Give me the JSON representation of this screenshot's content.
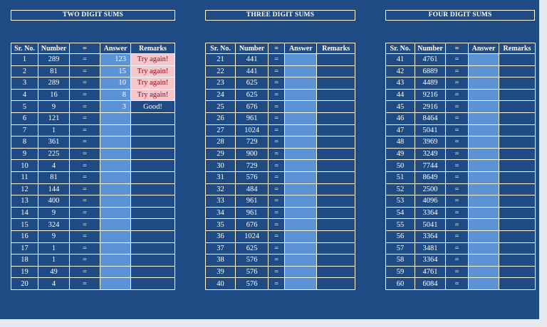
{
  "sections": [
    {
      "title": "TWO DIGIT SUMS",
      "columns": [
        "Sr. No.",
        "Number",
        "=",
        "Answer",
        "Remarks"
      ],
      "rows": [
        {
          "sr": "1",
          "number": "289",
          "eq": "=",
          "answer": "123",
          "remark": "Try again!"
        },
        {
          "sr": "2",
          "number": "81",
          "eq": "=",
          "answer": "15",
          "remark": "Try again!"
        },
        {
          "sr": "3",
          "number": "289",
          "eq": "=",
          "answer": "10",
          "remark": "Try again!"
        },
        {
          "sr": "4",
          "number": "16",
          "eq": "=",
          "answer": "8",
          "remark": "Try again!"
        },
        {
          "sr": "5",
          "number": "9",
          "eq": "=",
          "answer": "3",
          "remark": "Good!"
        },
        {
          "sr": "6",
          "number": "121",
          "eq": "=",
          "answer": "",
          "remark": ""
        },
        {
          "sr": "7",
          "number": "1",
          "eq": "=",
          "answer": "",
          "remark": ""
        },
        {
          "sr": "8",
          "number": "361",
          "eq": "=",
          "answer": "",
          "remark": ""
        },
        {
          "sr": "9",
          "number": "225",
          "eq": "=",
          "answer": "",
          "remark": ""
        },
        {
          "sr": "10",
          "number": "4",
          "eq": "=",
          "answer": "",
          "remark": ""
        },
        {
          "sr": "11",
          "number": "81",
          "eq": "=",
          "answer": "",
          "remark": ""
        },
        {
          "sr": "12",
          "number": "144",
          "eq": "=",
          "answer": "",
          "remark": ""
        },
        {
          "sr": "13",
          "number": "400",
          "eq": "=",
          "answer": "",
          "remark": ""
        },
        {
          "sr": "14",
          "number": "9",
          "eq": "=",
          "answer": "",
          "remark": ""
        },
        {
          "sr": "15",
          "number": "324",
          "eq": "=",
          "answer": "",
          "remark": ""
        },
        {
          "sr": "16",
          "number": "9",
          "eq": "=",
          "answer": "",
          "remark": ""
        },
        {
          "sr": "17",
          "number": "1",
          "eq": "=",
          "answer": "",
          "remark": ""
        },
        {
          "sr": "18",
          "number": "1",
          "eq": "=",
          "answer": "",
          "remark": ""
        },
        {
          "sr": "19",
          "number": "49",
          "eq": "=",
          "answer": "",
          "remark": ""
        },
        {
          "sr": "20",
          "number": "4",
          "eq": "=",
          "answer": "",
          "remark": ""
        }
      ]
    },
    {
      "title": "THREE DIGIT SUMS",
      "columns": [
        "Sr. No.",
        "Number",
        "=",
        "Answer",
        "Remarks"
      ],
      "rows": [
        {
          "sr": "21",
          "number": "441",
          "eq": "=",
          "answer": "",
          "remark": ""
        },
        {
          "sr": "22",
          "number": "441",
          "eq": "=",
          "answer": "",
          "remark": ""
        },
        {
          "sr": "23",
          "number": "625",
          "eq": "=",
          "answer": "",
          "remark": ""
        },
        {
          "sr": "24",
          "number": "625",
          "eq": "=",
          "answer": "",
          "remark": ""
        },
        {
          "sr": "25",
          "number": "676",
          "eq": "=",
          "answer": "",
          "remark": ""
        },
        {
          "sr": "26",
          "number": "961",
          "eq": "=",
          "answer": "",
          "remark": ""
        },
        {
          "sr": "27",
          "number": "1024",
          "eq": "=",
          "answer": "",
          "remark": ""
        },
        {
          "sr": "28",
          "number": "729",
          "eq": "=",
          "answer": "",
          "remark": ""
        },
        {
          "sr": "29",
          "number": "900",
          "eq": "=",
          "answer": "",
          "remark": ""
        },
        {
          "sr": "30",
          "number": "729",
          "eq": "=",
          "answer": "",
          "remark": ""
        },
        {
          "sr": "31",
          "number": "576",
          "eq": "=",
          "answer": "",
          "remark": ""
        },
        {
          "sr": "32",
          "number": "484",
          "eq": "=",
          "answer": "",
          "remark": ""
        },
        {
          "sr": "33",
          "number": "961",
          "eq": "=",
          "answer": "",
          "remark": ""
        },
        {
          "sr": "34",
          "number": "961",
          "eq": "=",
          "answer": "",
          "remark": ""
        },
        {
          "sr": "35",
          "number": "676",
          "eq": "=",
          "answer": "",
          "remark": ""
        },
        {
          "sr": "36",
          "number": "1024",
          "eq": "=",
          "answer": "",
          "remark": ""
        },
        {
          "sr": "37",
          "number": "625",
          "eq": "=",
          "answer": "",
          "remark": ""
        },
        {
          "sr": "38",
          "number": "576",
          "eq": "=",
          "answer": "",
          "remark": ""
        },
        {
          "sr": "39",
          "number": "576",
          "eq": "=",
          "answer": "",
          "remark": ""
        },
        {
          "sr": "40",
          "number": "576",
          "eq": "=",
          "answer": "",
          "remark": ""
        }
      ]
    },
    {
      "title": "FOUR DIGIT SUMS",
      "columns": [
        "Sr. No.",
        "Number",
        "=",
        "Answer",
        "Remarks"
      ],
      "rows": [
        {
          "sr": "41",
          "number": "4761",
          "eq": "=",
          "answer": "",
          "remark": ""
        },
        {
          "sr": "42",
          "number": "6889",
          "eq": "=",
          "answer": "",
          "remark": ""
        },
        {
          "sr": "43",
          "number": "4489",
          "eq": "=",
          "answer": "",
          "remark": ""
        },
        {
          "sr": "44",
          "number": "9216",
          "eq": "=",
          "answer": "",
          "remark": ""
        },
        {
          "sr": "45",
          "number": "2916",
          "eq": "=",
          "answer": "",
          "remark": ""
        },
        {
          "sr": "46",
          "number": "8464",
          "eq": "=",
          "answer": "",
          "remark": ""
        },
        {
          "sr": "47",
          "number": "5041",
          "eq": "=",
          "answer": "",
          "remark": ""
        },
        {
          "sr": "48",
          "number": "3969",
          "eq": "=",
          "answer": "",
          "remark": ""
        },
        {
          "sr": "49",
          "number": "3249",
          "eq": "=",
          "answer": "",
          "remark": ""
        },
        {
          "sr": "50",
          "number": "7744",
          "eq": "=",
          "answer": "",
          "remark": ""
        },
        {
          "sr": "51",
          "number": "8649",
          "eq": "=",
          "answer": "",
          "remark": ""
        },
        {
          "sr": "52",
          "number": "2500",
          "eq": "=",
          "answer": "",
          "remark": ""
        },
        {
          "sr": "53",
          "number": "4096",
          "eq": "=",
          "answer": "",
          "remark": ""
        },
        {
          "sr": "54",
          "number": "3364",
          "eq": "=",
          "answer": "",
          "remark": ""
        },
        {
          "sr": "55",
          "number": "5041",
          "eq": "=",
          "answer": "",
          "remark": ""
        },
        {
          "sr": "56",
          "number": "3364",
          "eq": "=",
          "answer": "",
          "remark": ""
        },
        {
          "sr": "57",
          "number": "3481",
          "eq": "=",
          "answer": "",
          "remark": ""
        },
        {
          "sr": "58",
          "number": "3364",
          "eq": "=",
          "answer": "",
          "remark": ""
        },
        {
          "sr": "59",
          "number": "4761",
          "eq": "=",
          "answer": "",
          "remark": ""
        },
        {
          "sr": "60",
          "number": "6084",
          "eq": "=",
          "answer": "",
          "remark": ""
        }
      ]
    }
  ],
  "colors": {
    "background": "#1f4b84",
    "answer_cell": "#5b93d4",
    "try_again_fill": "#f7c7ce",
    "try_again_text": "#9c0006",
    "grid": "#ffffff"
  }
}
